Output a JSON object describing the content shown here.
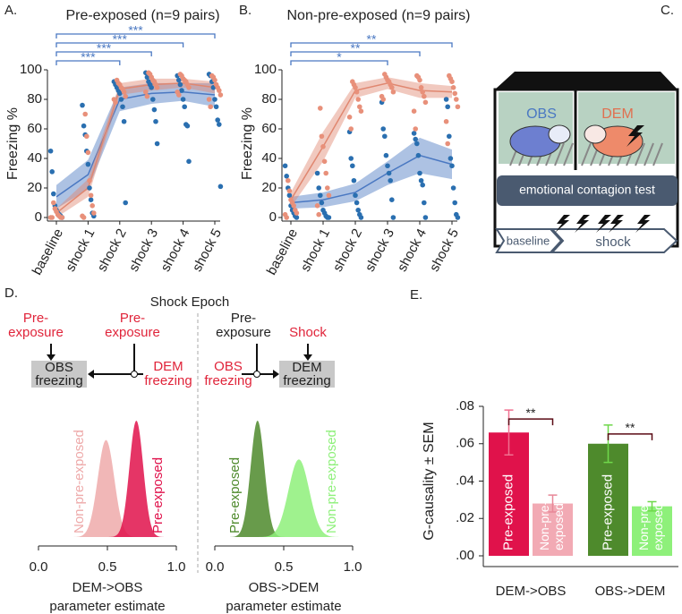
{
  "chart_data": [
    {
      "type": "line-band",
      "panel": "A.",
      "title": "Pre-exposed (n=9 pairs)",
      "ylabel": "Freezing %",
      "categories": [
        "baseline",
        "shock 1",
        "shock 2",
        "shock 3",
        "shock 4",
        "shock 5"
      ],
      "ylim": [
        0,
        100
      ],
      "yticks": [
        0,
        20,
        40,
        60,
        80,
        100
      ],
      "bracket_color": "#4a78c2",
      "brackets": [
        {
          "from": "baseline",
          "to": "shock 2",
          "label": "***"
        },
        {
          "from": "baseline",
          "to": "shock 3",
          "label": "***"
        },
        {
          "from": "baseline",
          "to": "shock 4",
          "label": "***"
        },
        {
          "from": "baseline",
          "to": "shock 5",
          "label": "***"
        }
      ],
      "series": [
        {
          "color": "#4a78c2",
          "point_color": "#2a6fb0",
          "values": [
            14,
            29,
            80,
            84,
            85,
            83
          ],
          "errors": [
            8,
            10,
            8,
            7,
            6,
            8
          ],
          "points": [
            [
              45,
              31,
              16,
              8,
              5,
              3,
              2,
              1,
              0
            ],
            [
              76,
              62,
              56,
              45,
              36,
              20,
              12,
              3,
              1
            ],
            [
              92,
              90,
              88,
              86,
              84,
              80,
              75,
              65,
              10
            ],
            [
              98,
              95,
              92,
              90,
              88,
              80,
              73,
              65,
              50
            ],
            [
              96,
              93,
              90,
              86,
              80,
              75,
              63,
              62,
              38
            ],
            [
              97,
              96,
              92,
              88,
              80,
              75,
              66,
              63,
              21
            ]
          ]
        },
        {
          "color": "#e08770",
          "point_color": "#e8907a",
          "values": [
            3,
            20,
            87,
            90,
            91,
            88
          ],
          "errors": [
            3,
            6,
            4,
            4,
            3,
            4
          ],
          "points": [
            [
              10,
              6,
              4,
              2,
              1,
              0,
              0,
              0,
              0
            ],
            [
              70,
              55,
              44,
              25,
              15,
              8,
              3,
              1,
              0
            ],
            [
              93,
              91,
              90,
              88,
              87,
              85,
              82,
              80,
              78
            ],
            [
              98,
              97,
              95,
              93,
              92,
              90,
              88,
              85,
              82
            ],
            [
              97,
              96,
              94,
              93,
              92,
              90,
              88,
              85,
              83
            ],
            [
              96,
              95,
              93,
              90,
              88,
              86,
              83,
              80,
              75
            ]
          ]
        }
      ]
    },
    {
      "type": "line-band",
      "panel": "B.",
      "title": "Non-pre-exposed (n=9 pairs)",
      "ylabel": "Freezing %",
      "categories": [
        "baseline",
        "shock 1",
        "shock 2",
        "shock 3",
        "shock 4",
        "shock 5"
      ],
      "ylim": [
        0,
        100
      ],
      "yticks": [
        0,
        20,
        40,
        60,
        80,
        100
      ],
      "bracket_color": "#4a78c2",
      "brackets": [
        {
          "from": "baseline",
          "to": "shock 3",
          "label": "*"
        },
        {
          "from": "baseline",
          "to": "shock 4",
          "label": "**"
        },
        {
          "from": "baseline",
          "to": "shock 5",
          "label": "**"
        }
      ],
      "series": [
        {
          "color": "#4a78c2",
          "point_color": "#2a6fb0",
          "values": [
            10,
            12,
            17,
            30,
            42,
            36
          ],
          "errors": [
            4,
            5,
            6,
            8,
            12,
            10
          ],
          "points": [
            [
              35,
              28,
              20,
              15,
              8,
              5,
              3,
              1,
              0
            ],
            [
              30,
              20,
              15,
              10,
              5,
              3,
              1,
              0,
              0
            ],
            [
              58,
              40,
              35,
              25,
              15,
              10,
              5,
              2,
              0
            ],
            [
              78,
              60,
              55,
              42,
              35,
              30,
              25,
              12,
              0
            ],
            [
              57,
              53,
              50,
              42,
              30,
              25,
              22,
              10,
              0
            ],
            [
              80,
              75,
              55,
              40,
              35,
              20,
              10,
              2,
              0
            ]
          ]
        },
        {
          "color": "#e08770",
          "point_color": "#e8907a",
          "values": [
            12,
            48,
            86,
            91,
            86,
            85
          ],
          "errors": [
            5,
            10,
            5,
            4,
            5,
            4
          ],
          "points": [
            [
              25,
              18,
              12,
              10,
              8,
              5,
              3,
              2,
              0
            ],
            [
              74,
              55,
              48,
              38,
              30,
              20,
              15,
              8,
              2
            ],
            [
              92,
              90,
              88,
              85,
              80,
              75,
              72,
              68,
              60
            ],
            [
              97,
              95,
              93,
              92,
              90,
              88,
              85,
              82,
              80
            ],
            [
              96,
              95,
              93,
              88,
              85,
              82,
              78,
              72,
              60
            ],
            [
              96,
              94,
              92,
              88,
              84,
              80,
              75,
              65,
              50
            ]
          ]
        }
      ]
    },
    {
      "type": "density",
      "xlabel": [
        "DEM->OBS",
        "parameter estimate"
      ],
      "xlim": [
        0,
        1
      ],
      "xticks": [
        {
          "value": 0,
          "label": "0.0"
        },
        {
          "value": 0.5,
          "label": "0.5"
        },
        {
          "value": 1,
          "label": "1.0"
        }
      ],
      "series": [
        {
          "name": "Non-pre-exposed",
          "color": "#eeaaaa",
          "mean": 0.49,
          "sd": 0.06
        },
        {
          "name": "Pre-exposed",
          "color": "#e0124b",
          "mean": 0.71,
          "sd": 0.05
        }
      ]
    },
    {
      "type": "density",
      "xlabel": [
        "OBS->DEM",
        "parameter estimate"
      ],
      "xlim": [
        0,
        1
      ],
      "xticks": [
        {
          "value": 0,
          "label": "0.0"
        },
        {
          "value": 0.5,
          "label": "0.5"
        },
        {
          "value": 1,
          "label": "1.0"
        }
      ],
      "series": [
        {
          "name": "Pre-exposed",
          "color": "#4e8a2c",
          "mean": 0.31,
          "sd": 0.05
        },
        {
          "name": "Non-pre-exposed",
          "color": "#8ef07a",
          "mean": 0.61,
          "sd": 0.075
        }
      ]
    },
    {
      "type": "bar",
      "panel": "E.",
      "ylabel": "G-causality ± SEM",
      "categories": [
        "DEM->OBS",
        "OBS->DEM"
      ],
      "ylim": [
        0,
        0.08
      ],
      "yticks": [
        {
          "value": 0,
          "label": ".00"
        },
        {
          "value": 0.02,
          "label": ".02"
        },
        {
          "value": 0.04,
          "label": ".04"
        },
        {
          "value": 0.06,
          "label": ".06"
        },
        {
          "value": 0.08,
          "label": ".08"
        }
      ],
      "bracket_color": "#5a0a14",
      "brackets": [
        "**",
        "**"
      ],
      "series": [
        {
          "name": "Pre-exposed",
          "values": [
            0.066,
            0.06
          ],
          "errors": [
            0.012,
            0.01
          ],
          "colors": [
            "#e0124b",
            "#4e8a2c"
          ],
          "error_colors": [
            "#f07090",
            "#6fd84a"
          ]
        },
        {
          "name": "Non-pre-exposed",
          "label_lines": [
            "Non-pre-",
            "exposed"
          ],
          "values": [
            0.028,
            0.0265
          ],
          "errors": [
            0.0045,
            0.0025
          ],
          "colors": [
            "#f2aab4",
            "#8ef07a"
          ],
          "error_colors": [
            "#e88898",
            "#6fd84a"
          ]
        }
      ]
    }
  ],
  "diagram_c": {
    "panel": "C.",
    "obs": "OBS",
    "dem": "DEM",
    "test": "emotional contagion test",
    "baseline": "baseline",
    "shock": "shock"
  },
  "diagram_d": {
    "panel": "D.",
    "title": "Shock Epoch",
    "left": {
      "cause_target": [
        "Pre-",
        "exposure"
      ],
      "cause_source": [
        "Pre-",
        "exposure"
      ],
      "target": [
        "OBS",
        "freezing"
      ],
      "source": [
        "DEM",
        "freezing"
      ]
    },
    "right": {
      "cause_target": [
        "Pre-",
        "exposure"
      ],
      "shock": "Shock",
      "source": [
        "OBS",
        "freezing"
      ],
      "target": [
        "DEM",
        "freezing"
      ]
    }
  }
}
